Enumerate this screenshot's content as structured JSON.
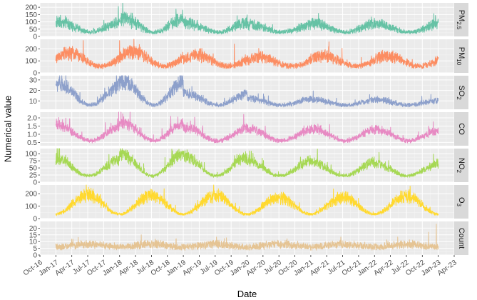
{
  "chart_data": {
    "type": "line",
    "title": "",
    "xlabel": "Date",
    "ylabel": "Numerical value",
    "x_ticks": [
      "Oct-16",
      "Jan-17",
      "Apr-17",
      "Jul-17",
      "Oct-17",
      "Jan-18",
      "Apr-18",
      "Jul-18",
      "Oct-18",
      "Jan-19",
      "Apr-19",
      "Jul-19",
      "Oct-19",
      "Jan-20",
      "Apr-20",
      "Jul-20",
      "Oct-20",
      "Jan-21",
      "Apr-21",
      "Jul-21",
      "Oct-21",
      "Jan-22",
      "Apr-22",
      "Jul-22",
      "Oct-22",
      "Jan-23",
      "Apr-23"
    ],
    "x_range": [
      "2016-10-01",
      "2023-04-01"
    ],
    "data_range": [
      "2017-01-01",
      "2022-12-31"
    ],
    "panels": [
      {
        "name": "PM2.5",
        "label_main": "PM",
        "label_sub": "2.5",
        "color": "#66c2a5",
        "ylim": [
          0,
          230
        ],
        "y_ticks": [
          "0",
          "50",
          "100",
          "150",
          "200"
        ],
        "tick_values": [
          0,
          50,
          100,
          150,
          200
        ],
        "annual_peak": [
          100,
          130,
          95,
          80,
          90,
          85,
          75
        ],
        "season_peak_month": 0.5,
        "seasonal_low": 30,
        "noise": 0.55,
        "spikes": [
          {
            "date": 2018.05,
            "value": 228
          },
          {
            "date": 2017.98,
            "value": 205
          }
        ]
      },
      {
        "name": "PM10",
        "label_main": "PM",
        "label_sub": "10",
        "color": "#fc8d62",
        "ylim": [
          0,
          280
        ],
        "y_ticks": [
          "0",
          "100",
          "200"
        ],
        "tick_values": [
          0,
          100,
          200
        ],
        "annual_peak": [
          160,
          175,
          150,
          130,
          145,
          140,
          135
        ],
        "season_peak_month": 2.5,
        "seasonal_low": 55,
        "noise": 0.45,
        "spikes": [
          {
            "date": 2017.43,
            "value": 270
          },
          {
            "date": 2018.0,
            "value": 270
          },
          {
            "date": 2019.8,
            "value": 240
          },
          {
            "date": 2021.28,
            "value": 220
          },
          {
            "date": 2021.49,
            "value": 205
          }
        ]
      },
      {
        "name": "SO2",
        "label_main": "SO",
        "label_sub": "2",
        "color": "#8da0cb",
        "ylim": [
          2,
          34
        ],
        "y_ticks": [
          "10",
          "20",
          "30"
        ],
        "tick_values": [
          10,
          20,
          30
        ],
        "annual_peak": [
          26,
          29,
          17,
          12,
          11,
          11,
          10
        ],
        "season_peak_month": 0.5,
        "seasonal_low": 6,
        "noise": 0.35,
        "spikes": [
          {
            "date": 2017.05,
            "value": 31
          },
          {
            "date": 2018.1,
            "value": 32
          }
        ]
      },
      {
        "name": "CO",
        "label_main": "CO",
        "label_sub": "",
        "color": "#e78ac3",
        "ylim": [
          0.3,
          2.35
        ],
        "y_ticks": [
          "0.5",
          "1.0",
          "1.5",
          "2.0"
        ],
        "tick_values": [
          0.5,
          1.0,
          1.5,
          2.0
        ],
        "annual_peak": [
          1.5,
          1.7,
          1.4,
          1.3,
          1.3,
          1.25,
          1.2
        ],
        "season_peak_month": 0.5,
        "seasonal_low": 0.6,
        "noise": 0.25,
        "spikes": [
          {
            "date": 2018.05,
            "value": 2.25
          }
        ]
      },
      {
        "name": "NO2",
        "label_main": "NO",
        "label_sub": "2",
        "color": "#a6d854",
        "ylim": [
          0,
          118
        ],
        "y_ticks": [
          "0",
          "25",
          "50",
          "75",
          "100"
        ],
        "tick_values": [
          0,
          25,
          50,
          75,
          100
        ],
        "annual_peak": [
          80,
          100,
          90,
          75,
          70,
          65,
          70
        ],
        "season_peak_month": 0.2,
        "seasonal_low": 22,
        "noise": 0.3,
        "spikes": [
          {
            "date": 2018.05,
            "value": 112
          }
        ]
      },
      {
        "name": "O3",
        "label_main": "O",
        "label_sub": "3",
        "color": "#ffd92f",
        "ylim": [
          0,
          270
        ],
        "y_ticks": [
          "0",
          "100",
          "200"
        ],
        "tick_values": [
          0,
          100,
          200
        ],
        "annual_peak": [
          190,
          185,
          185,
          170,
          170,
          180,
          170
        ],
        "season_peak_month": 6.0,
        "seasonal_low": 35,
        "noise": 0.35,
        "spikes": [
          {
            "date": 2017.55,
            "value": 245
          },
          {
            "date": 2019.55,
            "value": 240
          }
        ]
      },
      {
        "name": "Count",
        "label_main": "Count",
        "label_sub": "",
        "color": "#e5c494",
        "ylim": [
          0,
          25
        ],
        "y_ticks": [
          "0",
          "5",
          "10",
          "15",
          "20"
        ],
        "tick_values": [
          0,
          5,
          10,
          15,
          20
        ],
        "annual_peak": [
          8,
          8,
          8,
          8,
          8,
          8,
          8
        ],
        "season_peak_month": 6.0,
        "seasonal_low": 6,
        "noise": 0.45,
        "spikes": [
          {
            "date": 2022.97,
            "value": 23
          },
          {
            "date": 2022.85,
            "value": 17
          }
        ]
      }
    ]
  }
}
